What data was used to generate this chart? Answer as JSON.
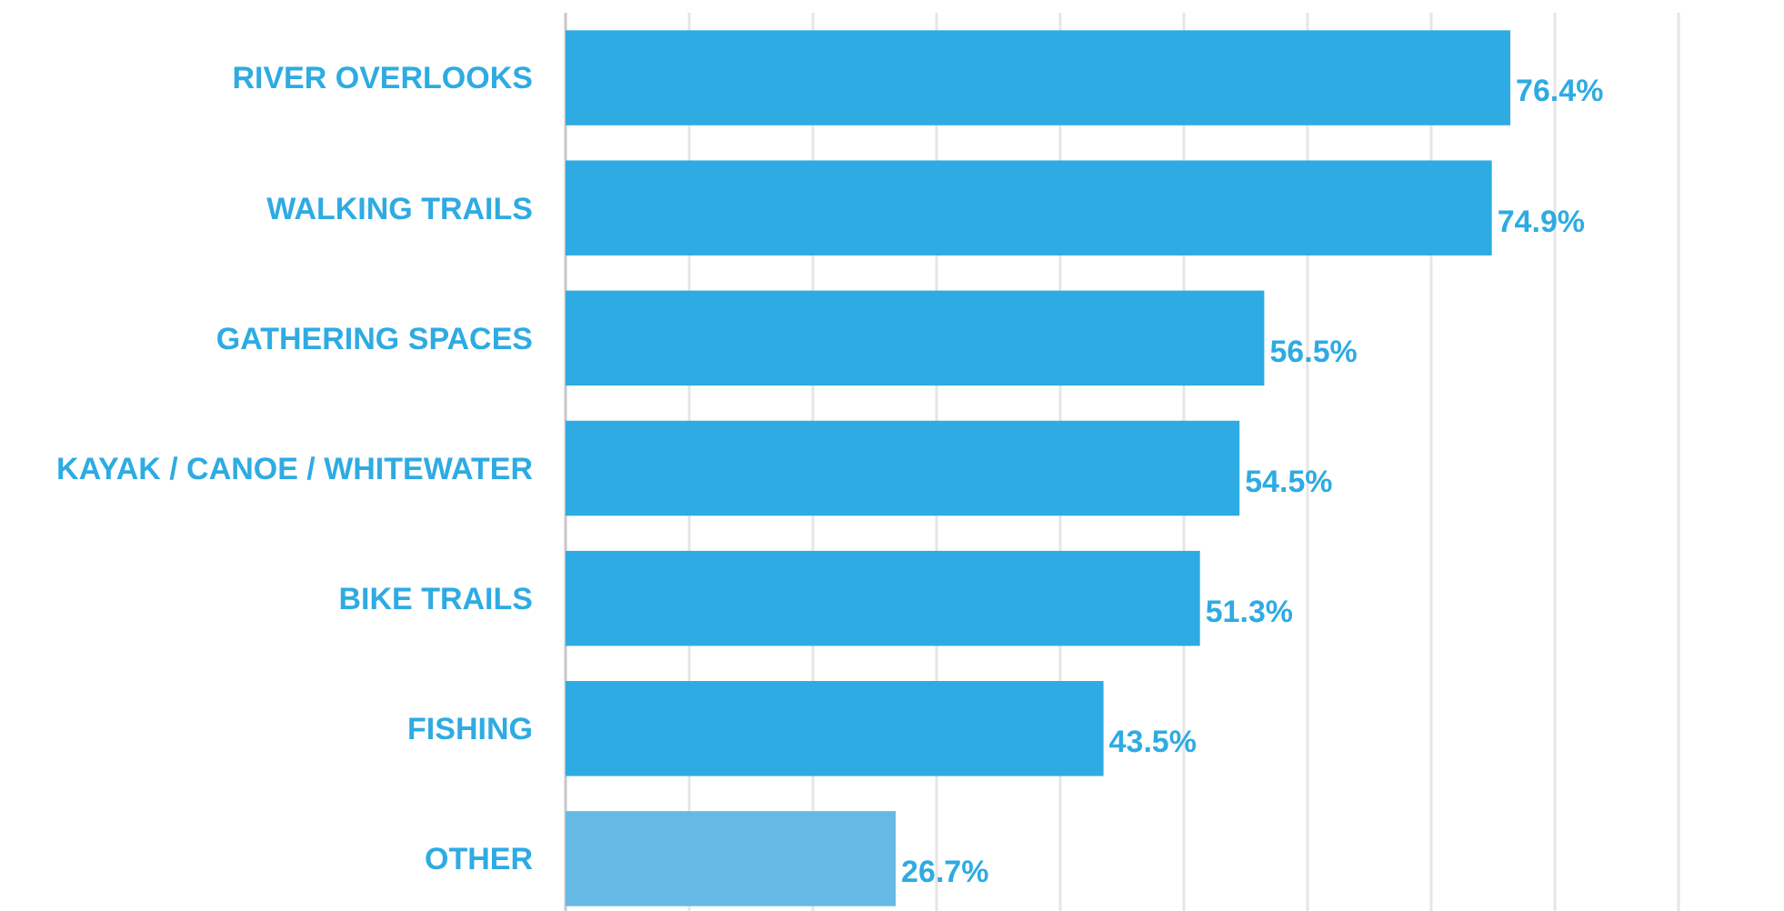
{
  "chart_data": {
    "type": "bar",
    "orientation": "horizontal",
    "categories": [
      "RIVER OVERLOOKS",
      "WALKING TRAILS",
      "GATHERING SPACES",
      "KAYAK / CANOE / WHITEWATER",
      "BIKE TRAILS",
      "FISHING",
      "OTHER"
    ],
    "values": [
      76.4,
      74.9,
      56.5,
      54.5,
      51.3,
      43.5,
      26.7
    ],
    "colors": [
      "#2eabe2",
      "#2eabe2",
      "#2eabe2",
      "#2eabe2",
      "#2eabe2",
      "#2eabe2",
      "#66b9e5"
    ],
    "value_labels": [
      "76.4%",
      "74.9%",
      "56.5%",
      "54.5%",
      "51.3%",
      "43.5%",
      "26.7%"
    ],
    "xlim": [
      0,
      90
    ],
    "xticks": [
      {
        "value": 0,
        "label": null
      },
      {
        "value": 10,
        "label": null
      },
      {
        "value": 20,
        "label": null
      },
      {
        "value": 30,
        "label": null
      },
      {
        "value": 40,
        "label": null
      },
      {
        "value": 50,
        "label": null
      },
      {
        "value": 60,
        "label": null
      },
      {
        "value": 70,
        "label": null
      },
      {
        "value": 80,
        "label": null
      },
      {
        "value": 90,
        "label": null
      }
    ],
    "grid": "x",
    "tick_labels": "y"
  }
}
